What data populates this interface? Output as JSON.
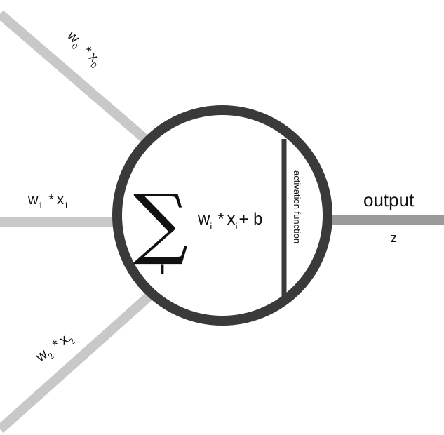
{
  "colors": {
    "background": "#ffffff",
    "input_line": "#c8c8c8",
    "output_line": "#9a9a9a",
    "circle": "#3a3a3a",
    "text": "#111111"
  },
  "inputs": [
    {
      "weight": "w",
      "weight_sub": "0",
      "op": "*",
      "value": "x",
      "value_sub": "0"
    },
    {
      "weight": "w",
      "weight_sub": "1",
      "op": "*",
      "value": "x",
      "value_sub": "1"
    },
    {
      "weight": "w",
      "weight_sub": "2",
      "op": "*",
      "value": "x",
      "value_sub": "2"
    }
  ],
  "sum": {
    "symbol": "∑",
    "index": "i",
    "expression": {
      "w": "w",
      "w_sub": "i",
      "op": "*",
      "x": "x",
      "x_sub": "i",
      "plus_b": "+ b"
    }
  },
  "activation_label": "activation function",
  "output": {
    "label": "output",
    "symbol": "z"
  }
}
